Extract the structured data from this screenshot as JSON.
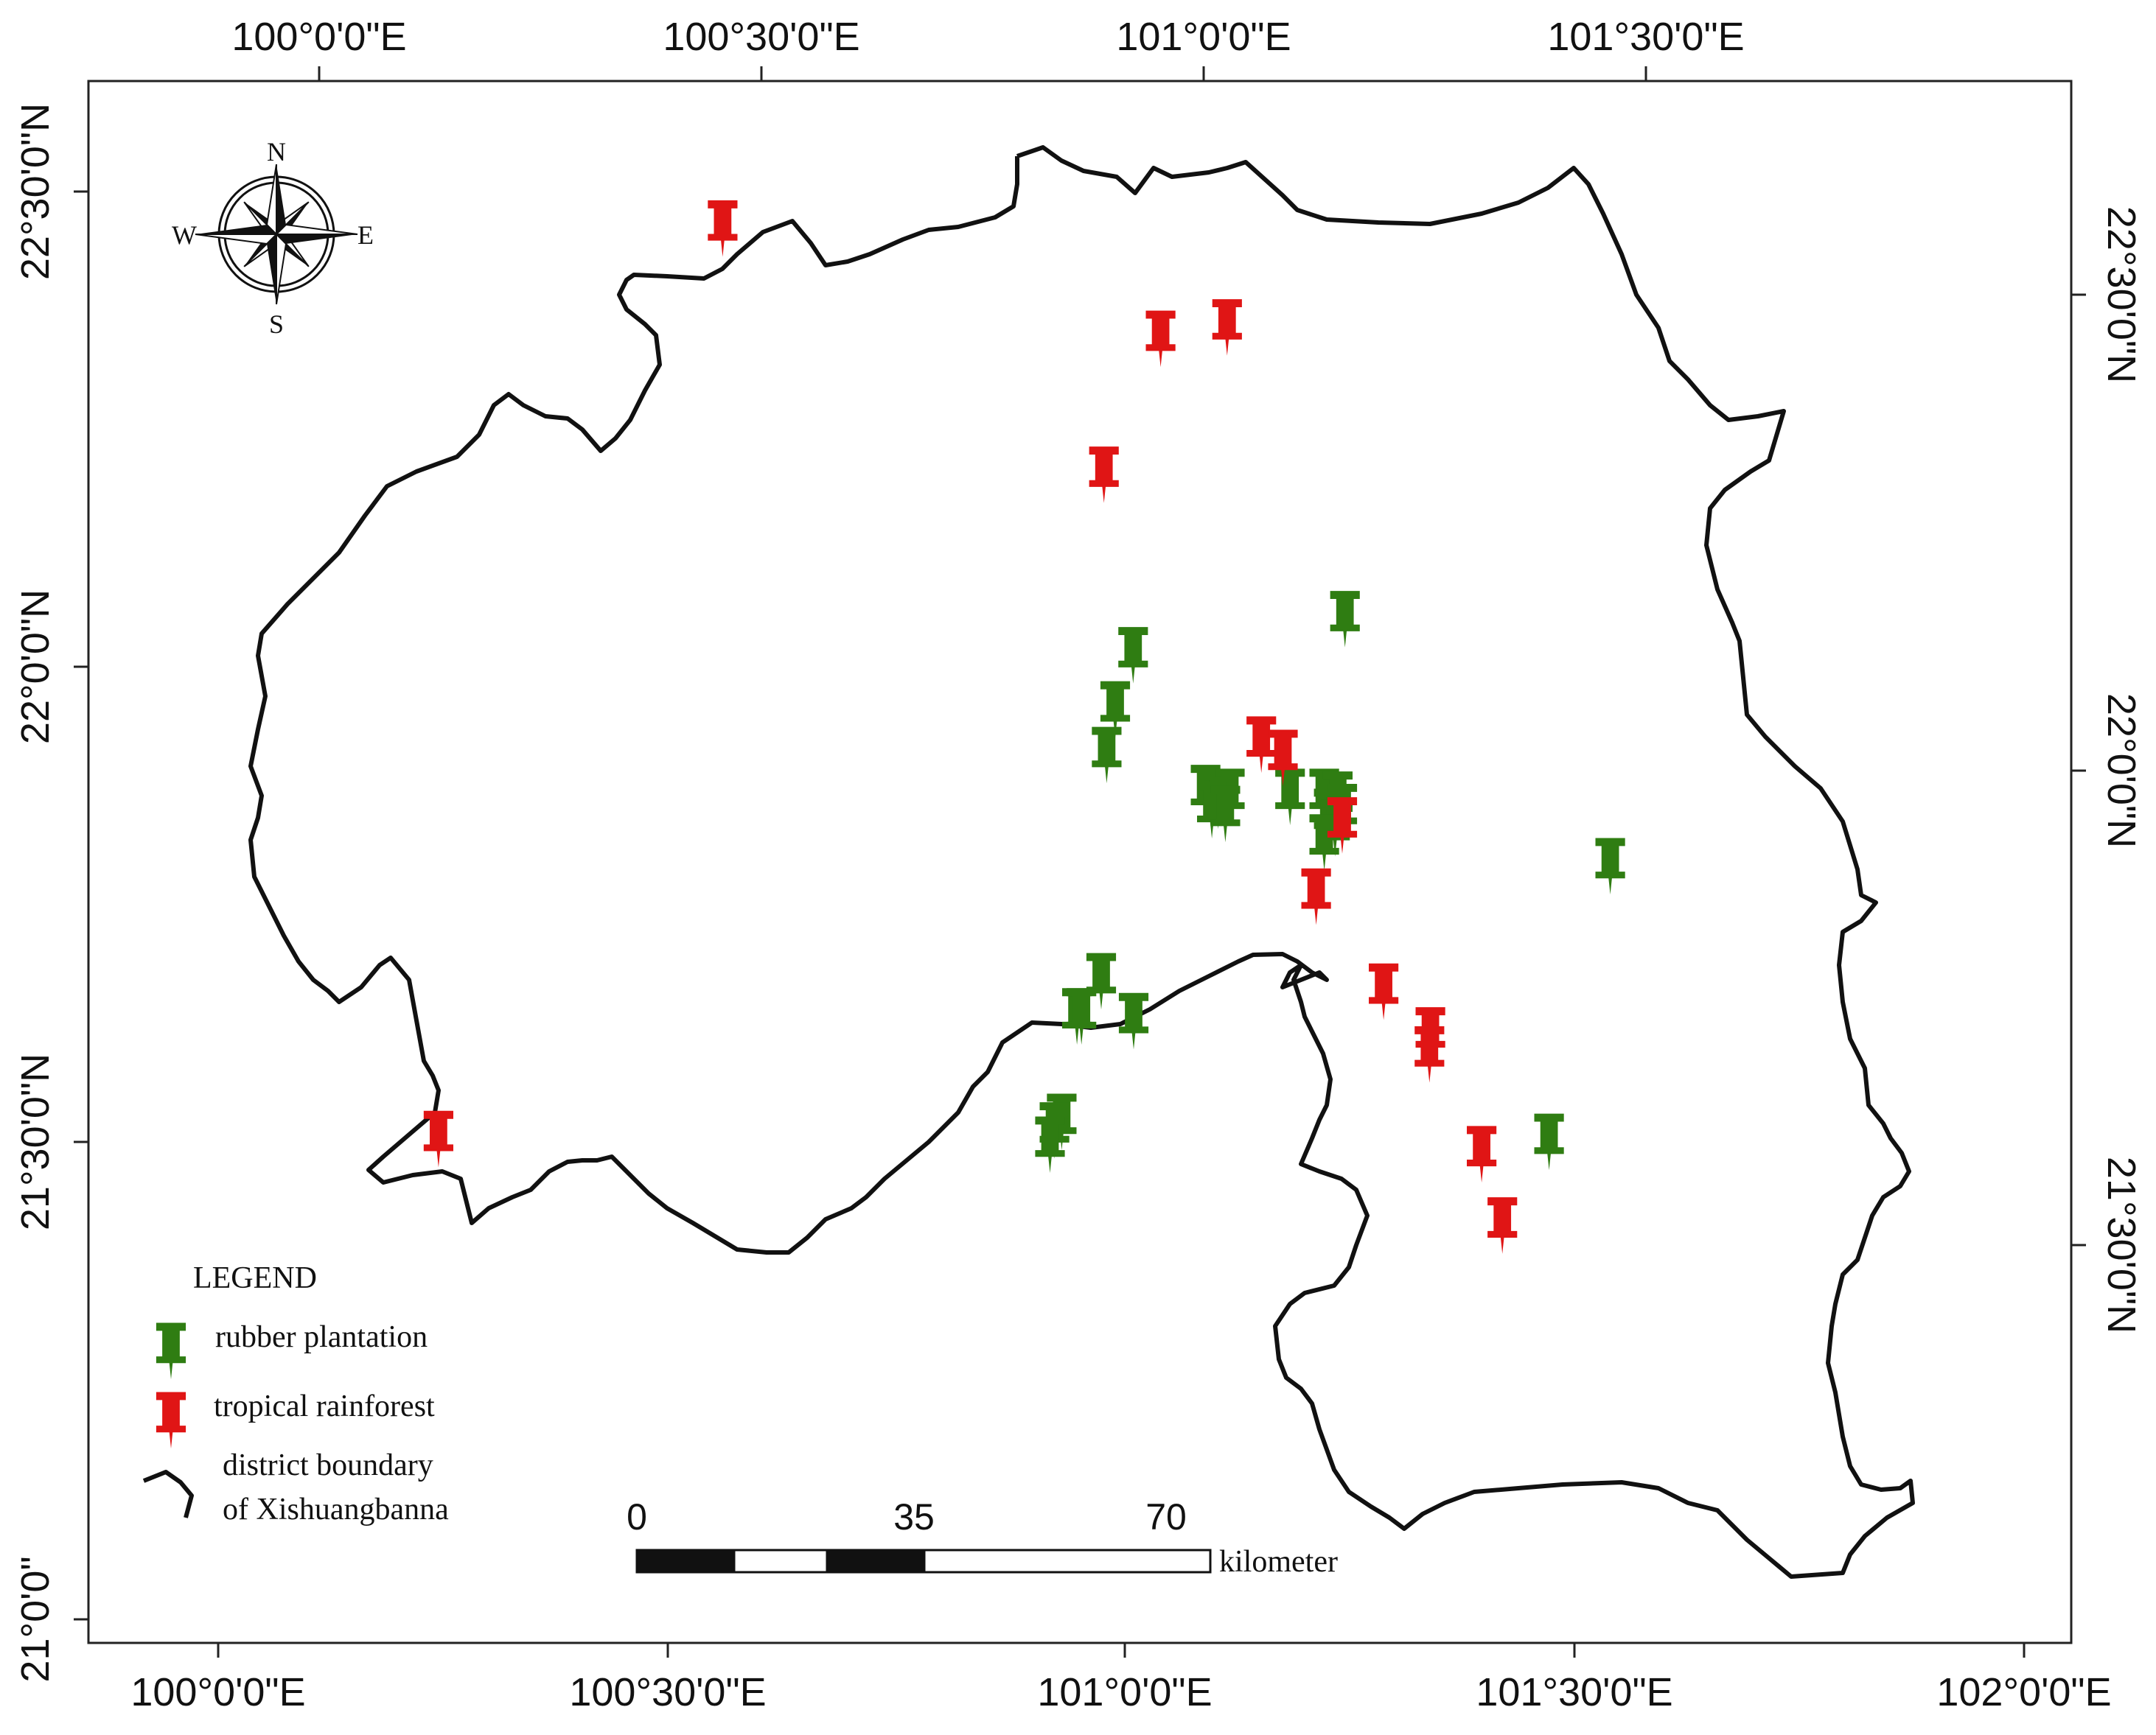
{
  "map": {
    "colors": {
      "frame": "#222222",
      "boundary": "#111111",
      "rubber": "#2f7d12",
      "rainforest": "#e01515",
      "scalebar_dark": "#111111",
      "scalebar_light": "#ffffff"
    },
    "top_axis_labels": [
      "100°0'0\"E",
      "100°30'0\"E",
      "101°0'0\"E",
      "101°30'0\"E"
    ],
    "bottom_axis_labels": [
      "100°0'0\"E",
      "100°30'0\"E",
      "101°0'0\"E",
      "101°30'0\"E",
      "102°0'0\"E"
    ],
    "left_axis_labels": [
      "22°30'0\"N",
      "22°0'0\"N",
      "21°30'0\"N",
      "21°0'0\""
    ],
    "right_axis_labels": [
      "22°30'0\"N",
      "22°0'0\"N",
      "21°30'0\"N"
    ],
    "compass": {
      "north": "N",
      "south": "S",
      "east": "E",
      "west": "W",
      "icon": "compass-rose-icon"
    },
    "legend": {
      "title": "LEGEND",
      "rubber": "rubber plantation",
      "rainforest": "tropical rainforest",
      "boundary_line1": "district boundary",
      "boundary_line2": "of Xishuangbanna"
    },
    "scalebar": {
      "ticks": [
        "0",
        "35",
        "70"
      ],
      "unit": "kilometer"
    },
    "markers": {
      "rubber": [
        [
          101.0175,
          22.015
        ],
        [
          100.9975,
          21.958
        ],
        [
          100.988,
          21.91
        ],
        [
          101.098,
          21.87
        ],
        [
          101.112,
          21.862
        ],
        [
          101.125,
          21.866
        ],
        [
          101.105,
          21.852
        ],
        [
          101.12,
          21.848
        ],
        [
          101.192,
          21.866
        ],
        [
          101.23,
          21.866
        ],
        [
          101.245,
          21.863
        ],
        [
          101.235,
          21.845
        ],
        [
          101.25,
          21.85
        ],
        [
          101.242,
          21.833
        ],
        [
          101.23,
          21.818
        ],
        [
          101.253,
          22.053
        ],
        [
          101.548,
          21.793
        ],
        [
          100.982,
          21.672
        ],
        [
          100.955,
          21.635
        ],
        [
          100.96,
          21.635
        ],
        [
          101.018,
          21.63
        ],
        [
          100.938,
          21.524
        ],
        [
          100.93,
          21.515
        ],
        [
          100.925,
          21.5
        ],
        [
          101.48,
          21.503
        ]
      ],
      "rainforest": [
        [
          100.561,
          22.464
        ],
        [
          101.048,
          22.348
        ],
        [
          101.122,
          22.36
        ],
        [
          100.985,
          22.205
        ],
        [
          101.16,
          21.921
        ],
        [
          101.184,
          21.907
        ],
        [
          101.25,
          21.836
        ],
        [
          101.221,
          21.761
        ],
        [
          101.296,
          21.661
        ],
        [
          101.348,
          21.615
        ],
        [
          101.347,
          21.595
        ],
        [
          101.405,
          21.49
        ],
        [
          101.428,
          21.415
        ],
        [
          100.245,
          21.506
        ]
      ]
    }
  }
}
